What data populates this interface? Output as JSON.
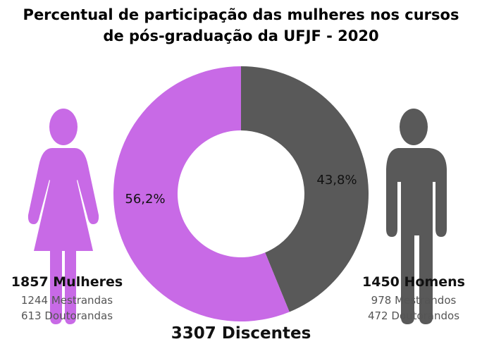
{
  "chart_data": {
    "type": "pie",
    "title": "Percentual de participação das mulheres nos cursos de pós-graduação da UFJF - 2020",
    "title_lines": [
      "Percentual de participação das mulheres nos cursos",
      "de pós-graduação da UFJF - 2020"
    ],
    "slices": [
      {
        "name": "Homens",
        "value": 43.8,
        "label": "43,8%",
        "color": "#595959"
      },
      {
        "name": "Mulheres",
        "value": 56.2,
        "label": "56,2%",
        "color": "#c86ae6"
      }
    ],
    "donut": true,
    "total_label": "3307 Discentes"
  },
  "women": {
    "title": "1857 Mulheres",
    "line1": "1244 Mestrandas",
    "line2": "613 Doutorandas",
    "icon": "woman-icon"
  },
  "men": {
    "title": "1450 Homens",
    "line1": "978 Mestrandos",
    "line2": "472 Doutorandos",
    "icon": "man-icon"
  }
}
